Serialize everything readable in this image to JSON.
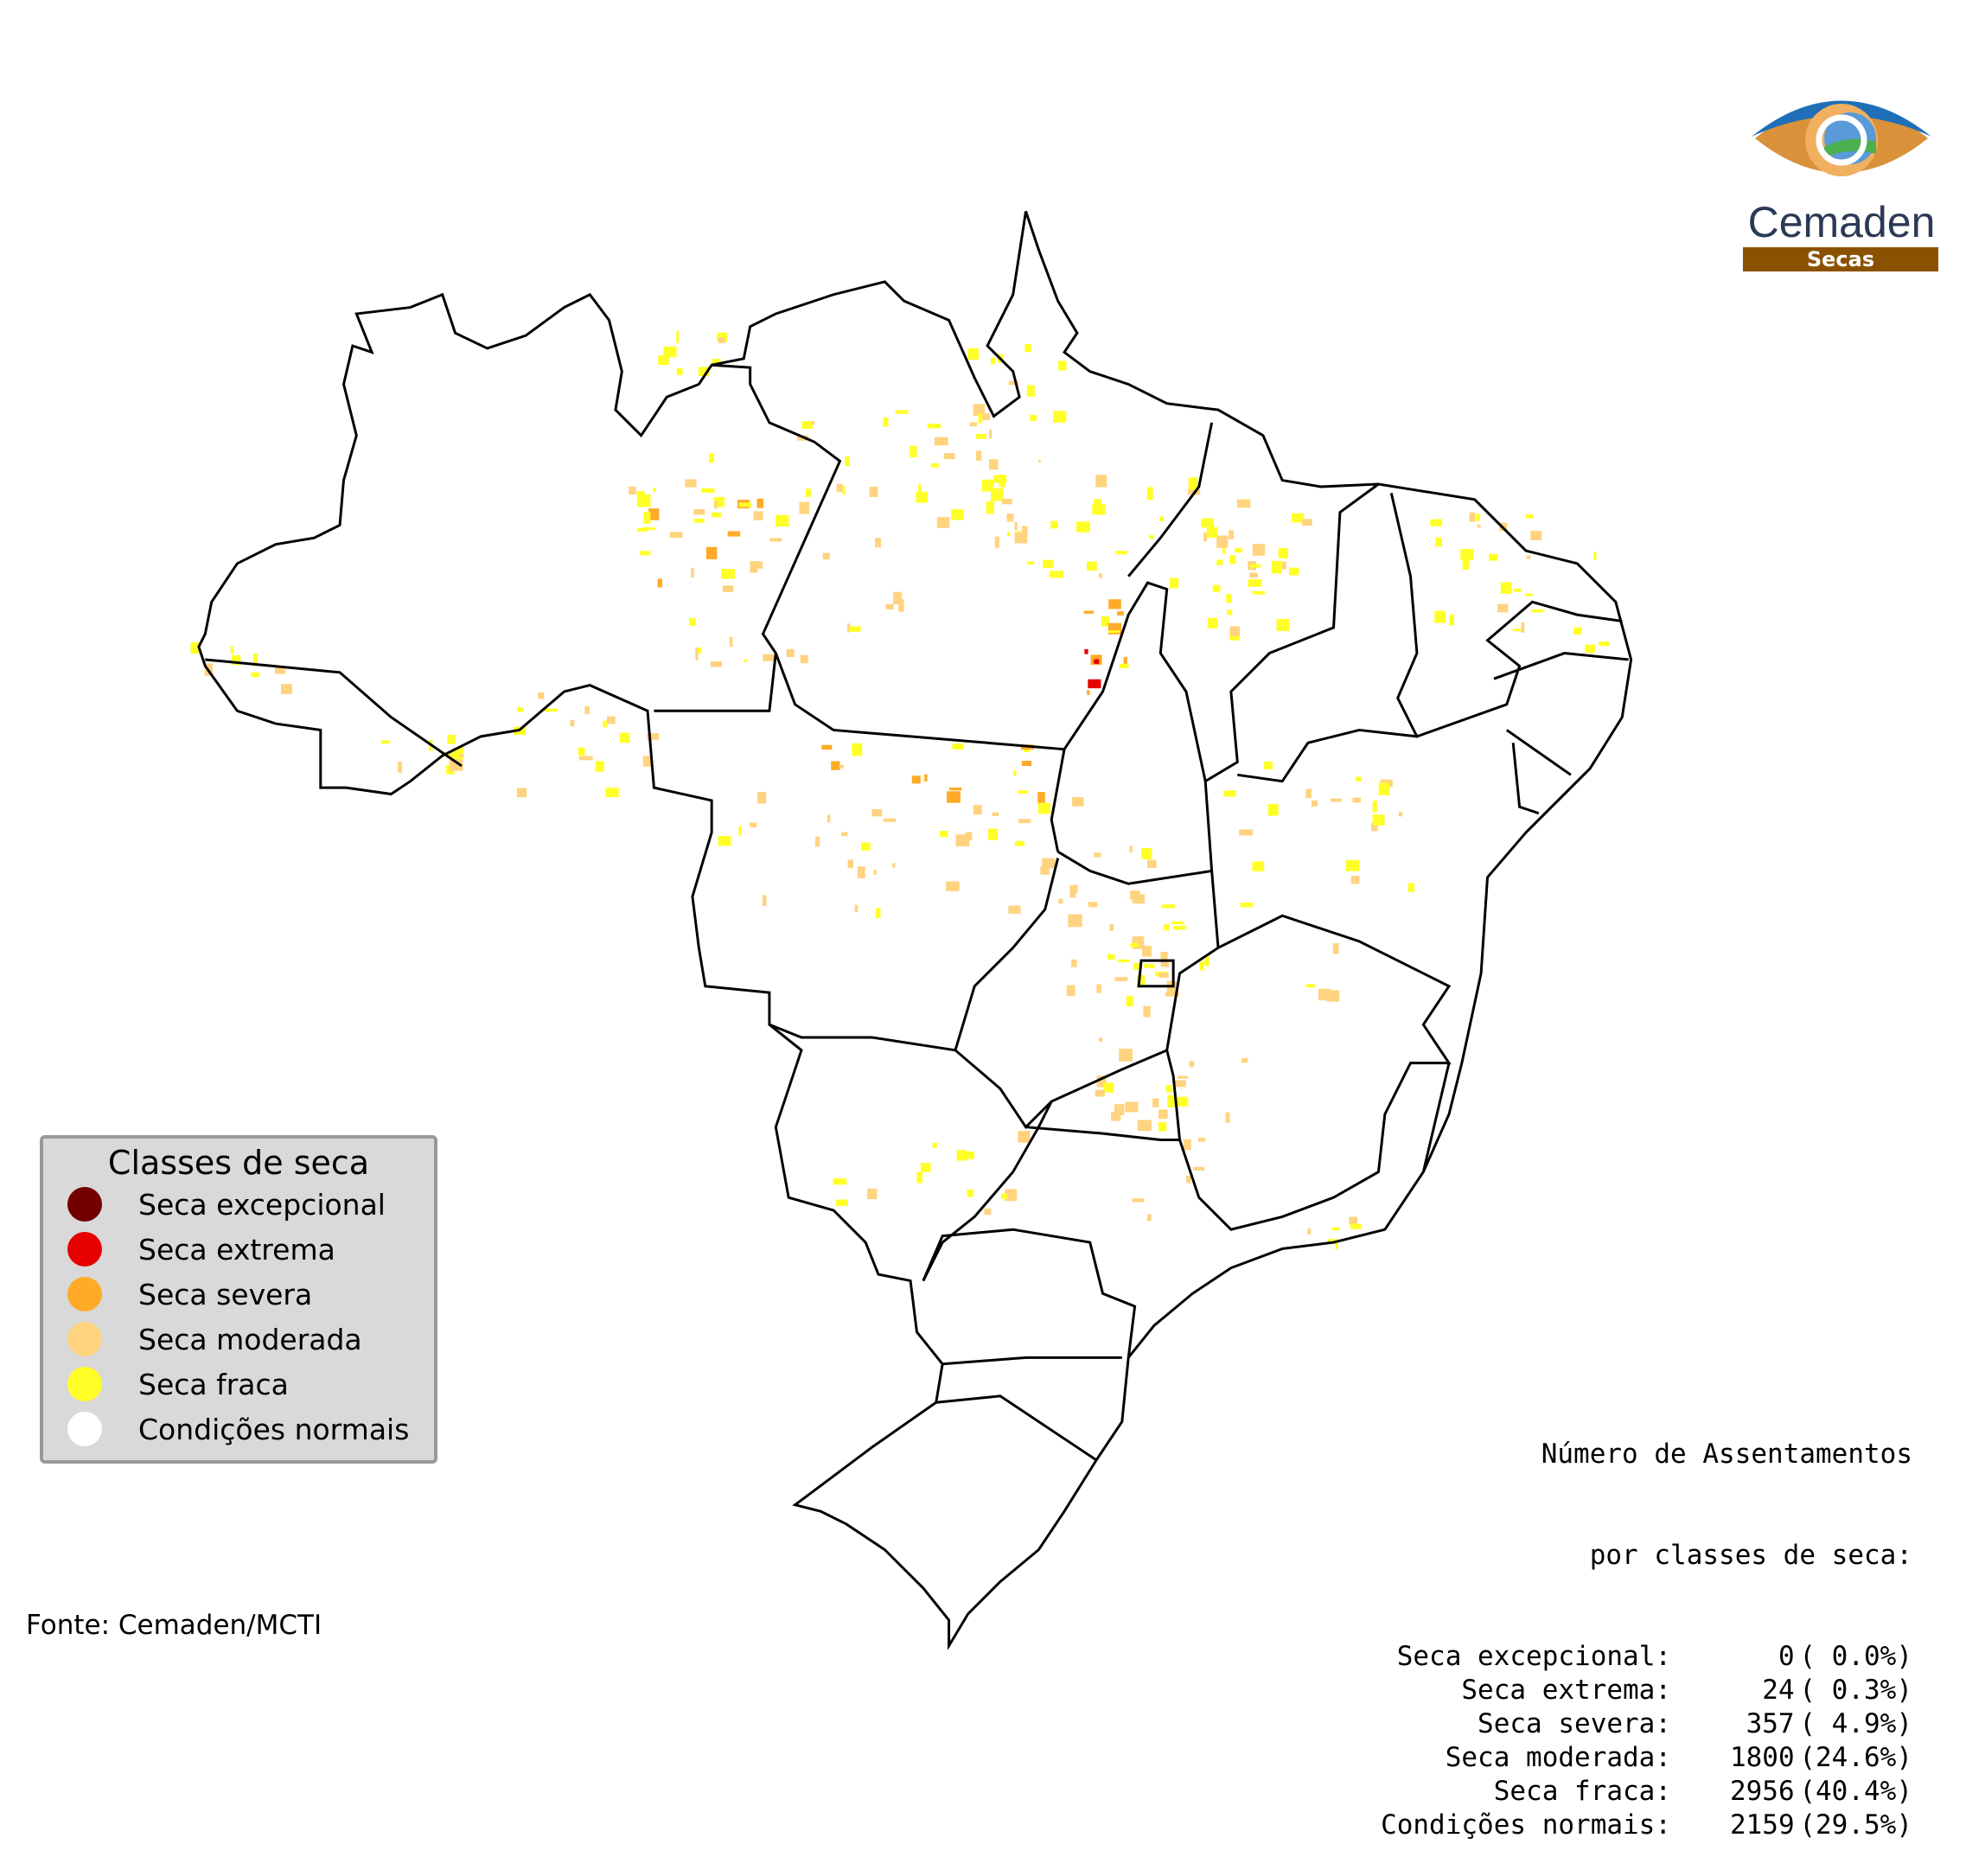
{
  "legend": {
    "title": "Classes de seca",
    "items": [
      {
        "label": "Seca excepcional",
        "color": "#730000"
      },
      {
        "label": "Seca extrema",
        "color": "#e60000"
      },
      {
        "label": "Seca severa",
        "color": "#ffaa28"
      },
      {
        "label": "Seca moderada",
        "color": "#ffd37f"
      },
      {
        "label": "Seca fraca",
        "color": "#ffff28"
      },
      {
        "label": "Condições normais",
        "color": "#ffffff"
      }
    ]
  },
  "stats": {
    "title_line1": "Número de Assentamentos",
    "title_line2": "por classes de seca:",
    "rows": [
      {
        "label": "Seca excepcional:",
        "count": "0",
        "percent": "( 0.0%)"
      },
      {
        "label": "Seca extrema:",
        "count": "24",
        "percent": "( 0.3%)"
      },
      {
        "label": "Seca severa:",
        "count": "357",
        "percent": "( 4.9%)"
      },
      {
        "label": "Seca moderada:",
        "count": "1800",
        "percent": "(24.6%)"
      },
      {
        "label": "Seca fraca:",
        "count": "2956",
        "percent": "(40.4%)"
      },
      {
        "label": "Condições normais:",
        "count": "2159",
        "percent": "(29.5%)"
      }
    ]
  },
  "source": "Fonte: Cemaden/MCTI",
  "logo": {
    "name": "Cemaden",
    "subtitle": "Secas"
  }
}
